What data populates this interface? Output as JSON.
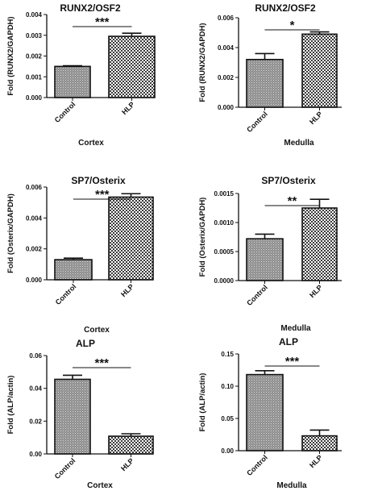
{
  "chart_data": [
    {
      "type": "bar",
      "title": "RUNX2/OSF2",
      "ylabel": "Fold (RUNX2/GAPDH)",
      "xlabel": "Cortex",
      "categories": [
        "Control",
        "HLP"
      ],
      "values": [
        0.0015,
        0.00295
      ],
      "errors": [
        3e-05,
        0.00015
      ],
      "ylim": [
        0,
        0.004
      ],
      "yticks": [
        "0.000",
        "0.001",
        "0.002",
        "0.003",
        "0.004"
      ],
      "significance": "***"
    },
    {
      "type": "bar",
      "title": "RUNX2/OSF2",
      "ylabel": "Fold (RUNX2/GAPDH)",
      "xlabel": "Medulla",
      "categories": [
        "Control",
        "HLP"
      ],
      "values": [
        0.0032,
        0.0049
      ],
      "errors": [
        0.0004,
        0.00015
      ],
      "ylim": [
        0,
        0.006
      ],
      "yticks": [
        "0.000",
        "0.002",
        "0.004",
        "0.006"
      ],
      "significance": "*"
    },
    {
      "type": "bar",
      "title": "SP7/Osterix",
      "ylabel": "Fold (Osterix/GAPDH)",
      "xlabel": "Cortex",
      "categories": [
        "Control",
        "HLP"
      ],
      "values": [
        0.0013,
        0.00535
      ],
      "errors": [
        0.0001,
        0.00022
      ],
      "ylim": [
        0,
        0.006
      ],
      "yticks": [
        "0.000",
        "0.002",
        "0.004",
        "0.006"
      ],
      "significance": "***"
    },
    {
      "type": "bar",
      "title": "SP7/Osterix",
      "ylabel": "Fold (Osterix/GAPDH)",
      "xlabel": "Medulla",
      "categories": [
        "Control",
        "HLP"
      ],
      "values": [
        0.00072,
        0.00125
      ],
      "errors": [
        8e-05,
        0.00015
      ],
      "ylim": [
        0,
        0.0015
      ],
      "yticks": [
        "0.0000",
        "0.0005",
        "0.0010",
        "0.0015"
      ],
      "significance": "**"
    },
    {
      "type": "bar",
      "title": "ALP",
      "ylabel": "Fold (ALP/actin)",
      "xlabel": "Cortex",
      "categories": [
        "Control",
        "HLP"
      ],
      "values": [
        0.0455,
        0.0108
      ],
      "errors": [
        0.0025,
        0.0015
      ],
      "ylim": [
        0,
        0.06
      ],
      "yticks": [
        "0.00",
        "0.02",
        "0.04",
        "0.06"
      ],
      "significance": "***"
    },
    {
      "type": "bar",
      "title": "ALP",
      "ylabel": "Fold (ALP/actin)",
      "xlabel": "Medulla",
      "categories": [
        "Control",
        "HLP"
      ],
      "values": [
        0.118,
        0.023
      ],
      "errors": [
        0.006,
        0.009
      ],
      "ylim": [
        0,
        0.15
      ],
      "yticks": [
        "0.00",
        "0.05",
        "0.10",
        "0.15"
      ],
      "significance": "***"
    }
  ],
  "colors": {
    "ink": "#111111",
    "control_fill": "#9a9a9a",
    "hlp_fill": "#c8c8c8"
  }
}
